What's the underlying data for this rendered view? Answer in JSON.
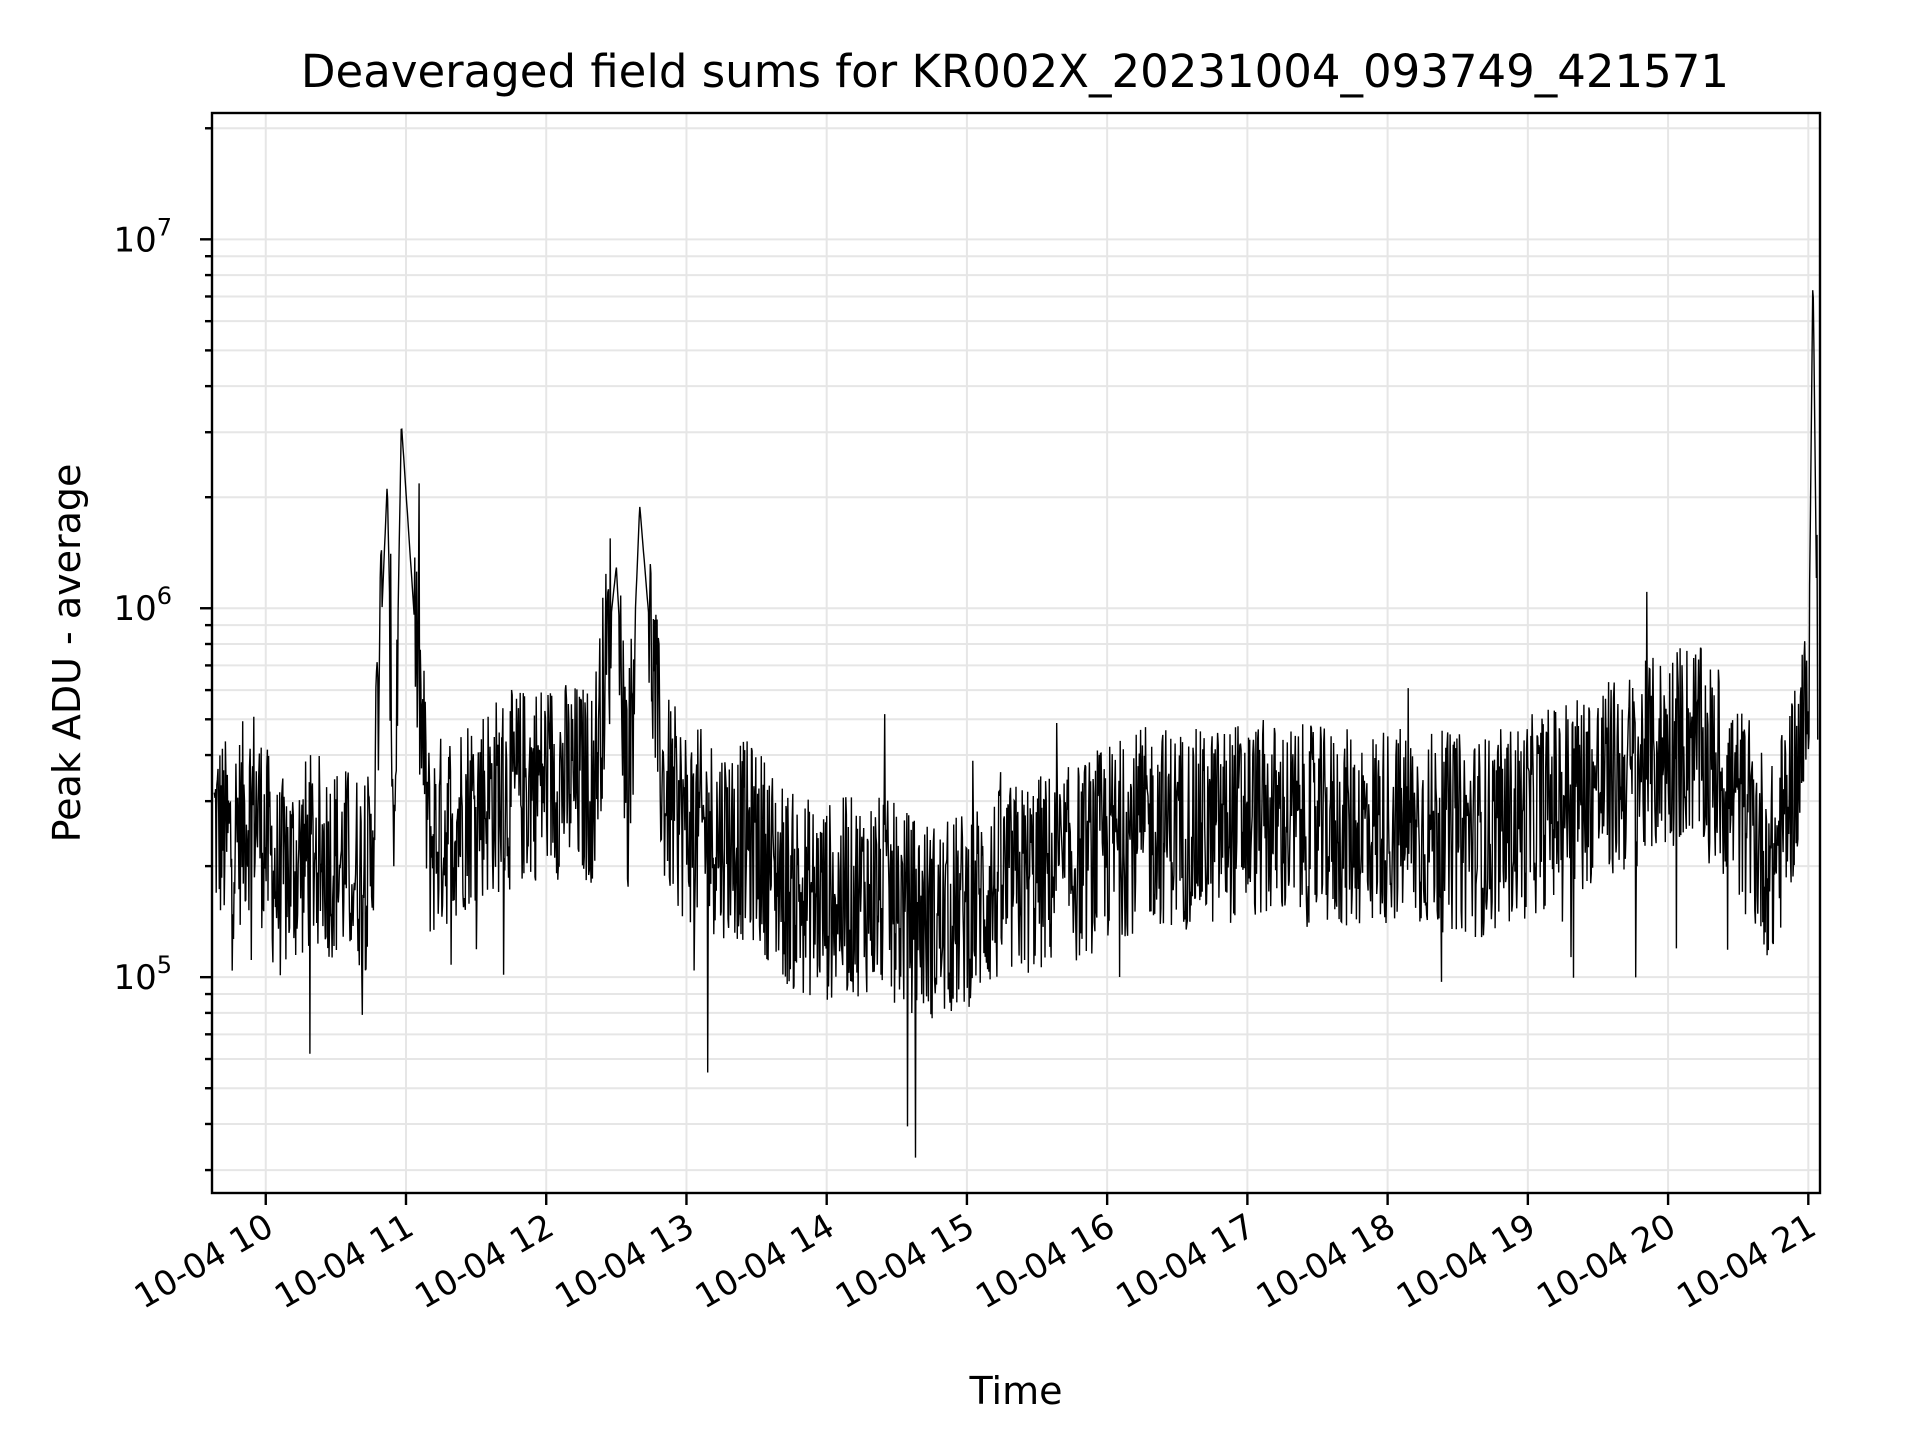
{
  "chart_data": {
    "type": "line",
    "title": "Deaveraged field sums for KR002X_20231004_093749_421571",
    "xlabel": "Time",
    "ylabel": "Peak ADU - average",
    "yscale": "log",
    "xlim": [
      "2023-10-04 09:37",
      "2023-10-04 21:05"
    ],
    "ylim": [
      26000,
      22000000
    ],
    "grid": "both",
    "line_color": "#000000",
    "x_ticks": [
      "10-04 10",
      "10-04 11",
      "10-04 12",
      "10-04 13",
      "10-04 14",
      "10-04 15",
      "10-04 16",
      "10-04 17",
      "10-04 18",
      "10-04 19",
      "10-04 20",
      "10-04 21"
    ],
    "y_ticks": [
      {
        "value": 100000,
        "base": "10",
        "exp": "5"
      },
      {
        "value": 1000000,
        "base": "10",
        "exp": "6"
      },
      {
        "value": 10000000,
        "base": "10",
        "exp": "7"
      }
    ],
    "series": [
      {
        "x": [
          "2023-10-04 09:38",
          "2023-10-04 09:45",
          "2023-10-04 09:55",
          "2023-10-04 10:05",
          "2023-10-04 10:20",
          "2023-10-04 10:35",
          "2023-10-04 10:45",
          "2023-10-04 10:52",
          "2023-10-04 10:55",
          "2023-10-04 10:58",
          "2023-10-04 11:10",
          "2023-10-04 11:30",
          "2023-10-04 11:45",
          "2023-10-04 12:00",
          "2023-10-04 12:20",
          "2023-10-04 12:30",
          "2023-10-04 12:35",
          "2023-10-04 12:40",
          "2023-10-04 12:50",
          "2023-10-04 13:00",
          "2023-10-04 13:15",
          "2023-10-04 13:30",
          "2023-10-04 13:45",
          "2023-10-04 14:00",
          "2023-10-04 14:20",
          "2023-10-04 14:35",
          "2023-10-04 14:50",
          "2023-10-04 15:10",
          "2023-10-04 15:30",
          "2023-10-04 15:45",
          "2023-10-04 16:00",
          "2023-10-04 16:20",
          "2023-10-04 16:40",
          "2023-10-04 17:00",
          "2023-10-04 17:20",
          "2023-10-04 17:40",
          "2023-10-04 18:00",
          "2023-10-04 18:20",
          "2023-10-04 18:40",
          "2023-10-04 19:00",
          "2023-10-04 19:20",
          "2023-10-04 19:40",
          "2023-10-04 19:55",
          "2023-10-04 20:10",
          "2023-10-04 20:30",
          "2023-10-04 20:45",
          "2023-10-04 21:00",
          "2023-10-04 21:02",
          "2023-10-04 21:04"
        ],
        "values": [
          260000,
          230000,
          300000,
          180000,
          220000,
          200000,
          190000,
          2200000,
          240000,
          3200000,
          230000,
          300000,
          320000,
          350000,
          330000,
          1300000,
          320000,
          1900000,
          320000,
          260000,
          240000,
          230000,
          170000,
          160000,
          170000,
          150000,
          140000,
          170000,
          190000,
          200000,
          230000,
          260000,
          250000,
          270000,
          260000,
          250000,
          260000,
          250000,
          240000,
          270000,
          320000,
          350000,
          400000,
          450000,
          300000,
          200000,
          520000,
          8500000,
          600000
        ]
      }
    ]
  }
}
